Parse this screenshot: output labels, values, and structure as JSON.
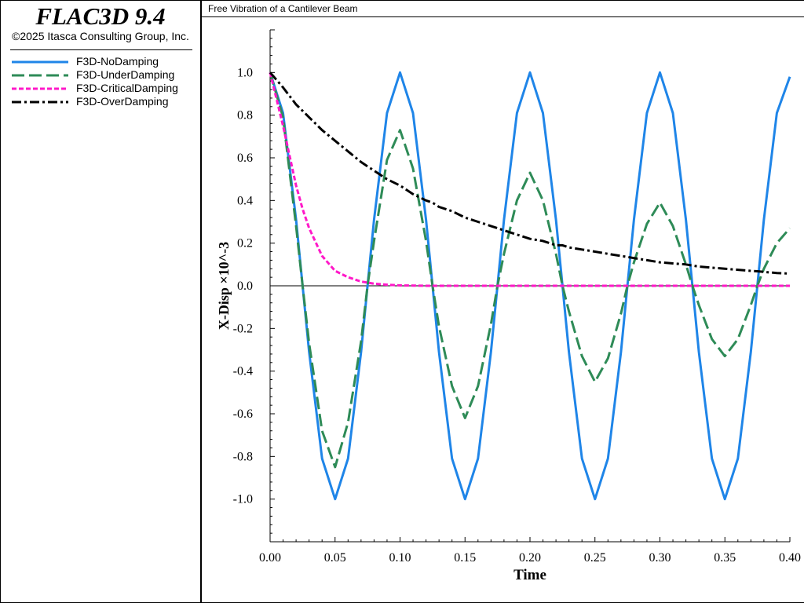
{
  "app": {
    "name": "FLAC3D 9.4",
    "copyright": "©2025 Itasca Consulting Group, Inc."
  },
  "legend": [
    {
      "label": "F3D-NoDamping",
      "color": "#1f85e8",
      "dash": "none"
    },
    {
      "label": "F3D-UnderDamping",
      "color": "#2e8b57",
      "dash": "long-dash"
    },
    {
      "label": "F3D-CriticalDamping",
      "color": "#ff19c8",
      "dash": "short-dash"
    },
    {
      "label": "F3D-OverDamping",
      "color": "#000000",
      "dash": "dash-dot"
    }
  ],
  "chart_data": {
    "type": "line",
    "title": "Free Vibration of a Cantilever Beam",
    "xlabel": "Time",
    "ylabel": "X-Disp ×10^-3",
    "xlim": [
      0,
      0.4
    ],
    "ylim": [
      -1.2,
      1.2
    ],
    "xticks": [
      "0.00",
      "0.05",
      "0.10",
      "0.15",
      "0.20",
      "0.25",
      "0.30",
      "0.35",
      "0.40"
    ],
    "yticks": [
      "1.0",
      "0.8",
      "0.6",
      "0.4",
      "0.2",
      "0.0",
      "-0.2",
      "-0.4",
      "-0.6",
      "-0.8",
      "-1.0"
    ],
    "grid": false,
    "legend_position": "left panel",
    "x": [
      0,
      0.01,
      0.02,
      0.025,
      0.03,
      0.04,
      0.05,
      0.06,
      0.07,
      0.075,
      0.08,
      0.09,
      0.1,
      0.11,
      0.12,
      0.125,
      0.13,
      0.14,
      0.15,
      0.16,
      0.17,
      0.175,
      0.18,
      0.19,
      0.2,
      0.21,
      0.22,
      0.225,
      0.23,
      0.24,
      0.25,
      0.26,
      0.27,
      0.275,
      0.28,
      0.29,
      0.3,
      0.31,
      0.32,
      0.325,
      0.33,
      0.34,
      0.35,
      0.36,
      0.37,
      0.375,
      0.38,
      0.39,
      0.4
    ],
    "series": [
      {
        "name": "F3D-NoDamping",
        "values": [
          1.0,
          0.81,
          0.31,
          0.0,
          -0.31,
          -0.81,
          -1.0,
          -0.81,
          -0.31,
          0.0,
          0.31,
          0.81,
          1.0,
          0.81,
          0.31,
          0.0,
          -0.31,
          -0.81,
          -1.0,
          -0.81,
          -0.31,
          0.0,
          0.31,
          0.81,
          1.0,
          0.81,
          0.31,
          0.0,
          -0.31,
          -0.81,
          -1.0,
          -0.81,
          -0.31,
          0.0,
          0.31,
          0.81,
          1.0,
          0.81,
          0.31,
          0.0,
          -0.31,
          -0.81,
          -1.0,
          -0.81,
          -0.31,
          0.0,
          0.31,
          0.81,
          0.98
        ]
      },
      {
        "name": "F3D-UnderDamping",
        "values": [
          1.0,
          0.79,
          0.28,
          0.0,
          -0.27,
          -0.68,
          -0.85,
          -0.64,
          -0.26,
          0.0,
          0.21,
          0.59,
          0.73,
          0.55,
          0.21,
          0.0,
          -0.19,
          -0.47,
          -0.62,
          -0.47,
          -0.18,
          0.0,
          0.15,
          0.4,
          0.53,
          0.4,
          0.15,
          0.0,
          -0.12,
          -0.33,
          -0.45,
          -0.34,
          -0.13,
          0.0,
          0.11,
          0.29,
          0.39,
          0.28,
          0.1,
          0.0,
          -0.09,
          -0.25,
          -0.33,
          -0.25,
          -0.09,
          0.0,
          0.08,
          0.2,
          0.27
        ]
      },
      {
        "name": "F3D-CriticalDamping",
        "values": [
          1.0,
          0.75,
          0.47,
          0.36,
          0.27,
          0.14,
          0.07,
          0.04,
          0.02,
          0.015,
          0.01,
          0.005,
          0.002,
          0.001,
          0.0,
          0.0,
          0.0,
          0.0,
          0.0,
          0.0,
          0.0,
          0.0,
          0.0,
          0.0,
          0.0,
          0.0,
          0.0,
          0.0,
          0.0,
          0.0,
          0.0,
          0.0,
          0.0,
          0.0,
          0.0,
          0.0,
          0.0,
          0.0,
          0.0,
          0.0,
          0.0,
          0.0,
          0.0,
          0.0,
          0.0,
          0.0,
          0.0,
          0.0,
          0.0
        ]
      },
      {
        "name": "F3D-OverDamping",
        "values": [
          1.0,
          0.93,
          0.85,
          0.82,
          0.79,
          0.73,
          0.68,
          0.63,
          0.58,
          0.56,
          0.54,
          0.5,
          0.47,
          0.43,
          0.4,
          0.39,
          0.37,
          0.35,
          0.32,
          0.3,
          0.28,
          0.27,
          0.26,
          0.24,
          0.22,
          0.21,
          0.19,
          0.19,
          0.18,
          0.17,
          0.16,
          0.15,
          0.14,
          0.135,
          0.13,
          0.12,
          0.11,
          0.105,
          0.1,
          0.095,
          0.09,
          0.085,
          0.08,
          0.075,
          0.07,
          0.068,
          0.065,
          0.06,
          0.057
        ]
      }
    ]
  }
}
